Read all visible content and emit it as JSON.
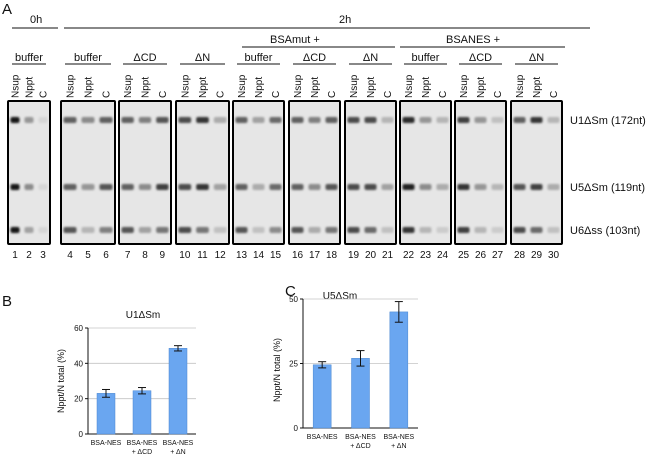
{
  "panel_a": {
    "letter": "A",
    "time_0h": "0h",
    "time_2h": "2h",
    "group_bsamut": "BSAmut +",
    "group_bsanes": "BSANES +",
    "conditions": [
      {
        "label": "buffer",
        "numbers": [
          "1",
          "2",
          "3"
        ]
      },
      {
        "label": "buffer",
        "numbers": [
          "4",
          "5",
          "6"
        ]
      },
      {
        "label": "ΔCD",
        "numbers": [
          "7",
          "8",
          "9"
        ]
      },
      {
        "label": "ΔN",
        "numbers": [
          "10",
          "11",
          "12"
        ]
      },
      {
        "label": "buffer",
        "numbers": [
          "13",
          "14",
          "15"
        ]
      },
      {
        "label": "ΔCD",
        "numbers": [
          "16",
          "17",
          "18"
        ]
      },
      {
        "label": "ΔN",
        "numbers": [
          "19",
          "20",
          "21"
        ]
      },
      {
        "label": "buffer",
        "numbers": [
          "22",
          "23",
          "24"
        ]
      },
      {
        "label": "ΔCD",
        "numbers": [
          "25",
          "26",
          "27"
        ]
      },
      {
        "label": "ΔN",
        "numbers": [
          "28",
          "29",
          "30"
        ]
      }
    ],
    "lane_labels": [
      "Nsup",
      "Nppt",
      "C"
    ],
    "band_labels": [
      "U1ΔSm (172nt)",
      "U5ΔSm (119nt)",
      "U6Δss (103nt)"
    ],
    "band_intensity": [
      [
        [
          0.95,
          0.35,
          0.05
        ],
        [
          0.95,
          0.4,
          0.05
        ],
        [
          0.95,
          0.3,
          0.05
        ]
      ],
      [
        [
          0.6,
          0.4,
          0.6
        ],
        [
          0.6,
          0.35,
          0.65
        ],
        [
          0.65,
          0.2,
          0.45
        ]
      ],
      [
        [
          0.6,
          0.45,
          0.65
        ],
        [
          0.6,
          0.4,
          0.75
        ],
        [
          0.65,
          0.3,
          0.5
        ]
      ],
      [
        [
          0.7,
          0.8,
          0.25
        ],
        [
          0.7,
          0.8,
          0.3
        ],
        [
          0.7,
          0.5,
          0.15
        ]
      ],
      [
        [
          0.6,
          0.3,
          0.55
        ],
        [
          0.6,
          0.25,
          0.55
        ],
        [
          0.65,
          0.15,
          0.4
        ]
      ],
      [
        [
          0.6,
          0.45,
          0.6
        ],
        [
          0.6,
          0.4,
          0.65
        ],
        [
          0.65,
          0.25,
          0.5
        ]
      ],
      [
        [
          0.7,
          0.7,
          0.2
        ],
        [
          0.7,
          0.7,
          0.3
        ],
        [
          0.7,
          0.55,
          0.15
        ]
      ],
      [
        [
          0.85,
          0.35,
          0.2
        ],
        [
          0.9,
          0.4,
          0.25
        ],
        [
          0.8,
          0.2,
          0.1
        ]
      ],
      [
        [
          0.75,
          0.35,
          0.15
        ],
        [
          0.8,
          0.35,
          0.2
        ],
        [
          0.75,
          0.2,
          0.1
        ]
      ],
      [
        [
          0.6,
          0.8,
          0.2
        ],
        [
          0.65,
          0.75,
          0.25
        ],
        [
          0.7,
          0.55,
          0.15
        ]
      ]
    ]
  },
  "panel_b": {
    "letter": "B",
    "chart_data": {
      "type": "bar",
      "title": "U1ΔSm",
      "ylabel": "Nppt/N total (%)",
      "categories": [
        [
          "BSA-NES"
        ],
        [
          "BSA-NES",
          "+ ΔCD"
        ],
        [
          "BSA-NES",
          "+ ΔN"
        ]
      ],
      "values": [
        23,
        24.5,
        48.5
      ],
      "errors": [
        2.2,
        1.8,
        1.5
      ],
      "ylim": [
        0,
        60
      ],
      "yticks": [
        "0",
        "20",
        "40",
        "60"
      ],
      "grid": true,
      "bar_color": "#6aa6f0"
    }
  },
  "panel_c": {
    "letter": "C",
    "chart_data": {
      "type": "bar",
      "title": "U5ΔSm",
      "ylabel": "Nppt/N total (%)",
      "categories": [
        [
          "BSA-NES"
        ],
        [
          "BSA-NES",
          "+ ΔCD"
        ],
        [
          "BSA-NES",
          "+ ΔN"
        ]
      ],
      "values": [
        24.5,
        27,
        45
      ],
      "errors": [
        1.2,
        3,
        4
      ],
      "ylim": [
        0,
        50
      ],
      "yticks": [
        "0",
        "25",
        "50"
      ],
      "grid": true,
      "bar_color": "#6aa6f0"
    }
  }
}
